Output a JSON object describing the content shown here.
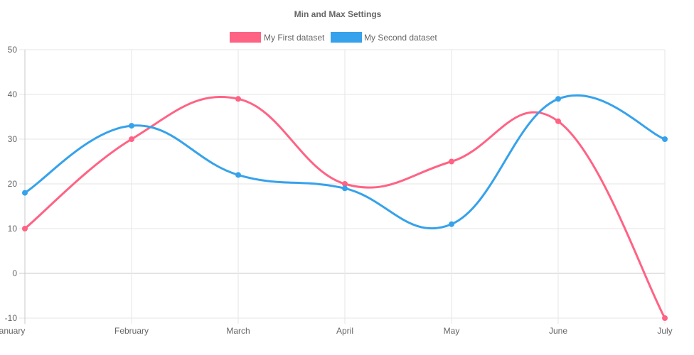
{
  "chart_data": {
    "type": "line",
    "title": "Min and Max Settings",
    "categories": [
      "January",
      "February",
      "March",
      "April",
      "May",
      "June",
      "July"
    ],
    "ylim": [
      -10,
      50
    ],
    "yticks": [
      -10,
      0,
      10,
      20,
      30,
      40,
      50
    ],
    "grid": true,
    "curve": "smooth",
    "legend_position": "top",
    "series": [
      {
        "name": "My First dataset",
        "color": "#ff6384",
        "values": [
          10,
          30,
          39,
          20,
          25,
          34,
          -10
        ]
      },
      {
        "name": "My Second dataset",
        "color": "#36a2eb",
        "values": [
          18,
          33,
          22,
          19,
          11,
          39,
          30
        ]
      }
    ]
  }
}
